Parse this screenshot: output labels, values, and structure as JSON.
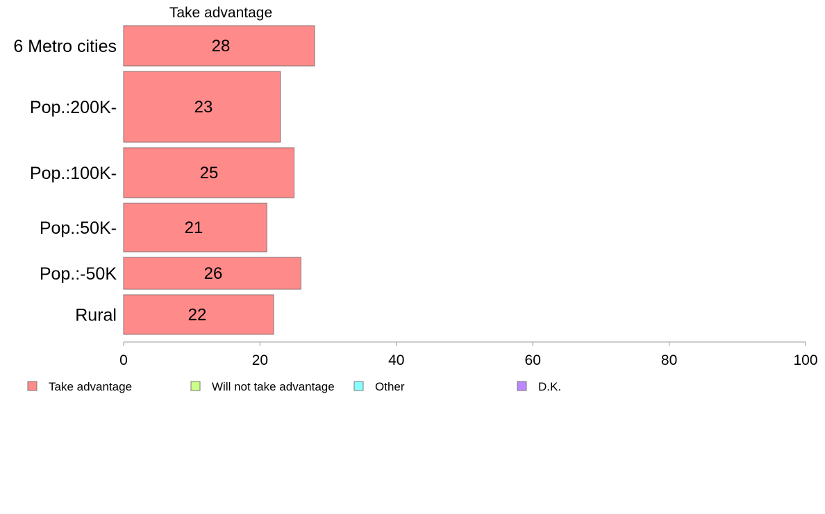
{
  "chart_data": {
    "type": "bar",
    "orientation": "horizontal",
    "column_header": "Take advantage",
    "categories": [
      "6 Metro cities",
      "Pop.:200K-",
      "Pop.:100K-",
      "Pop.:50K-",
      "Pop.:-50K",
      "Rural"
    ],
    "series": [
      {
        "name": "Take advantage",
        "values": [
          28,
          23,
          25,
          21,
          26,
          22
        ],
        "color": "#ff8a8a"
      }
    ],
    "xlim": [
      0,
      100
    ],
    "x_ticks": [
      "0",
      "20",
      "40",
      "60",
      "80",
      "100"
    ],
    "grid": false,
    "legend_position": "bottom-left",
    "legend": [
      {
        "label": "Take advantage",
        "color": "#ff8a8a"
      },
      {
        "label": "Will not take advantage",
        "color": "#ccff88"
      },
      {
        "label": "Other",
        "color": "#88ffff"
      },
      {
        "label": "D.K.",
        "color": "#bb88ff"
      }
    ]
  }
}
